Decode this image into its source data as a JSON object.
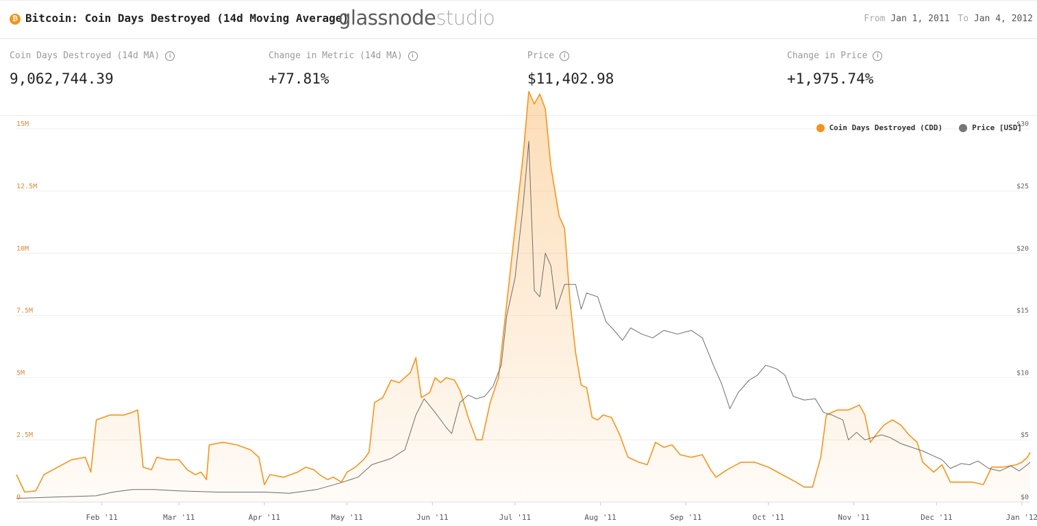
{
  "header": {
    "coin_icon": "bitcoin-icon",
    "title": "Bitcoin: Coin Days Destroyed (14d Moving Average)",
    "brand_main": "glassnode",
    "brand_sub": "studio",
    "from_label": "From",
    "from_value": "Jan 1, 2011",
    "to_label": "To",
    "to_value": "Jan 4, 2012"
  },
  "metrics": [
    {
      "label": "Coin Days Destroyed (14d MA)",
      "value": "9,062,744.39",
      "icon": "info-icon"
    },
    {
      "label": "Change in Metric (14d MA)",
      "value": "+77.81%",
      "icon": "info-icon"
    },
    {
      "label": "Price",
      "value": "$11,402.98",
      "icon": "info-icon"
    },
    {
      "label": "Change in Price",
      "value": "+1,975.74%",
      "icon": "info-icon"
    }
  ],
  "legend": [
    {
      "label": "Coin Days Destroyed (CDD)",
      "color": "#f7931a"
    },
    {
      "label": "Price [USD]",
      "color": "#777777"
    }
  ],
  "chart_data": {
    "type": "area",
    "grid": true,
    "legend_position": "top-right",
    "x_tick_labels": [
      "Feb '11",
      "Mar '11",
      "Apr '11",
      "May '11",
      "Jun '11",
      "Jul '11",
      "Aug '11",
      "Sep '11",
      "Oct '11",
      "Nov '11",
      "Dec '11",
      "Jan '12"
    ],
    "x_tick_dates": [
      "2011-02-01",
      "2011-03-01",
      "2011-04-01",
      "2011-05-01",
      "2011-06-01",
      "2011-07-01",
      "2011-08-01",
      "2011-09-01",
      "2011-10-01",
      "2011-11-01",
      "2011-12-01",
      "2012-01-01"
    ],
    "xlim": [
      "2011-01-01",
      "2012-01-04"
    ],
    "y_left": {
      "ticks": [
        0,
        2500000,
        5000000,
        7500000,
        10000000,
        12500000,
        15000000
      ],
      "tick_labels": [
        "0",
        "2.5M",
        "5M",
        "7.5M",
        "10M",
        "12.5M",
        "15M"
      ],
      "ylim": [
        0,
        15500000
      ]
    },
    "y_right": {
      "ticks": [
        0,
        5,
        10,
        15,
        20,
        25,
        30
      ],
      "tick_labels": [
        "$0",
        "$5",
        "$10",
        "$15",
        "$20",
        "$25",
        "$30"
      ],
      "ylim": [
        0,
        31
      ]
    },
    "series": [
      {
        "name": "Coin Days Destroyed (CDD)",
        "axis": "left",
        "color": "#f7931a",
        "fill": true,
        "points": [
          [
            "2011-01-01",
            1100000
          ],
          [
            "2011-01-04",
            400000
          ],
          [
            "2011-01-08",
            450000
          ],
          [
            "2011-01-11",
            1100000
          ],
          [
            "2011-01-16",
            1400000
          ],
          [
            "2011-01-21",
            1700000
          ],
          [
            "2011-01-26",
            1800000
          ],
          [
            "2011-01-28",
            1200000
          ],
          [
            "2011-01-30",
            3300000
          ],
          [
            "2011-02-04",
            3500000
          ],
          [
            "2011-02-09",
            3500000
          ],
          [
            "2011-02-12",
            3600000
          ],
          [
            "2011-02-14",
            3700000
          ],
          [
            "2011-02-16",
            1400000
          ],
          [
            "2011-02-19",
            1300000
          ],
          [
            "2011-02-21",
            1800000
          ],
          [
            "2011-02-25",
            1700000
          ],
          [
            "2011-03-01",
            1700000
          ],
          [
            "2011-03-04",
            1300000
          ],
          [
            "2011-03-07",
            1100000
          ],
          [
            "2011-03-09",
            1200000
          ],
          [
            "2011-03-11",
            900000
          ],
          [
            "2011-03-12",
            2300000
          ],
          [
            "2011-03-17",
            2400000
          ],
          [
            "2011-03-22",
            2300000
          ],
          [
            "2011-03-27",
            2100000
          ],
          [
            "2011-03-30",
            1800000
          ],
          [
            "2011-04-01",
            700000
          ],
          [
            "2011-04-03",
            1100000
          ],
          [
            "2011-04-08",
            1000000
          ],
          [
            "2011-04-13",
            1200000
          ],
          [
            "2011-04-16",
            1400000
          ],
          [
            "2011-04-19",
            1300000
          ],
          [
            "2011-04-21",
            1100000
          ],
          [
            "2011-04-24",
            900000
          ],
          [
            "2011-04-26",
            1000000
          ],
          [
            "2011-04-29",
            800000
          ],
          [
            "2011-05-01",
            1200000
          ],
          [
            "2011-05-04",
            1400000
          ],
          [
            "2011-05-07",
            1700000
          ],
          [
            "2011-05-09",
            2000000
          ],
          [
            "2011-05-11",
            4000000
          ],
          [
            "2011-05-14",
            4200000
          ],
          [
            "2011-05-17",
            4900000
          ],
          [
            "2011-05-20",
            4800000
          ],
          [
            "2011-05-24",
            5200000
          ],
          [
            "2011-05-26",
            5800000
          ],
          [
            "2011-05-28",
            4200000
          ],
          [
            "2011-05-31",
            4400000
          ],
          [
            "2011-06-02",
            5000000
          ],
          [
            "2011-06-04",
            4800000
          ],
          [
            "2011-06-06",
            5000000
          ],
          [
            "2011-06-09",
            4900000
          ],
          [
            "2011-06-11",
            4500000
          ],
          [
            "2011-06-14",
            3400000
          ],
          [
            "2011-06-17",
            2500000
          ],
          [
            "2011-06-19",
            2500000
          ],
          [
            "2011-06-22",
            4000000
          ],
          [
            "2011-06-25",
            5000000
          ],
          [
            "2011-06-28",
            8000000
          ],
          [
            "2011-07-01",
            11000000
          ],
          [
            "2011-07-04",
            14000000
          ],
          [
            "2011-07-06",
            16500000
          ],
          [
            "2011-07-08",
            16000000
          ],
          [
            "2011-07-10",
            16400000
          ],
          [
            "2011-07-12",
            15800000
          ],
          [
            "2011-07-14",
            13500000
          ],
          [
            "2011-07-17",
            11500000
          ],
          [
            "2011-07-19",
            11000000
          ],
          [
            "2011-07-21",
            8000000
          ],
          [
            "2011-07-23",
            6000000
          ],
          [
            "2011-07-25",
            4700000
          ],
          [
            "2011-07-27",
            4600000
          ],
          [
            "2011-07-29",
            3400000
          ],
          [
            "2011-07-31",
            3300000
          ],
          [
            "2011-08-02",
            3500000
          ],
          [
            "2011-08-05",
            3400000
          ],
          [
            "2011-08-08",
            2700000
          ],
          [
            "2011-08-11",
            1800000
          ],
          [
            "2011-08-15",
            1600000
          ],
          [
            "2011-08-18",
            1500000
          ],
          [
            "2011-08-21",
            2400000
          ],
          [
            "2011-08-24",
            2200000
          ],
          [
            "2011-08-27",
            2300000
          ],
          [
            "2011-08-30",
            1900000
          ],
          [
            "2011-09-03",
            1800000
          ],
          [
            "2011-09-07",
            1900000
          ],
          [
            "2011-09-10",
            1300000
          ],
          [
            "2011-09-12",
            1000000
          ],
          [
            "2011-09-16",
            1300000
          ],
          [
            "2011-09-21",
            1600000
          ],
          [
            "2011-09-26",
            1600000
          ],
          [
            "2011-10-01",
            1400000
          ],
          [
            "2011-10-06",
            1100000
          ],
          [
            "2011-10-11",
            800000
          ],
          [
            "2011-10-14",
            600000
          ],
          [
            "2011-10-17",
            600000
          ],
          [
            "2011-10-20",
            1800000
          ],
          [
            "2011-10-22",
            3500000
          ],
          [
            "2011-10-26",
            3700000
          ],
          [
            "2011-10-30",
            3700000
          ],
          [
            "2011-11-03",
            3900000
          ],
          [
            "2011-11-05",
            3500000
          ],
          [
            "2011-11-07",
            2400000
          ],
          [
            "2011-11-09",
            2700000
          ],
          [
            "2011-11-12",
            3100000
          ],
          [
            "2011-11-15",
            3300000
          ],
          [
            "2011-11-18",
            3100000
          ],
          [
            "2011-11-21",
            2700000
          ],
          [
            "2011-11-24",
            2400000
          ],
          [
            "2011-11-26",
            1600000
          ],
          [
            "2011-11-30",
            1200000
          ],
          [
            "2011-12-03",
            1500000
          ],
          [
            "2011-12-06",
            800000
          ],
          [
            "2011-12-10",
            800000
          ],
          [
            "2011-12-14",
            800000
          ],
          [
            "2011-12-18",
            700000
          ],
          [
            "2011-12-21",
            1400000
          ],
          [
            "2011-12-25",
            1400000
          ],
          [
            "2011-12-30",
            1500000
          ],
          [
            "2012-01-01",
            1600000
          ],
          [
            "2012-01-03",
            1800000
          ],
          [
            "2012-01-04",
            2000000
          ]
        ]
      },
      {
        "name": "Price [USD]",
        "axis": "right",
        "color": "#6b6b6b",
        "fill": false,
        "points": [
          [
            "2011-01-01",
            0.3
          ],
          [
            "2011-01-15",
            0.4
          ],
          [
            "2011-01-30",
            0.5
          ],
          [
            "2011-02-05",
            0.8
          ],
          [
            "2011-02-12",
            1.0
          ],
          [
            "2011-02-20",
            1.0
          ],
          [
            "2011-03-01",
            0.9
          ],
          [
            "2011-03-15",
            0.8
          ],
          [
            "2011-04-01",
            0.8
          ],
          [
            "2011-04-10",
            0.7
          ],
          [
            "2011-04-20",
            1.0
          ],
          [
            "2011-04-28",
            1.5
          ],
          [
            "2011-05-05",
            2.0
          ],
          [
            "2011-05-10",
            3.0
          ],
          [
            "2011-05-17",
            3.5
          ],
          [
            "2011-05-22",
            4.2
          ],
          [
            "2011-05-26",
            7.0
          ],
          [
            "2011-05-29",
            8.3
          ],
          [
            "2011-06-02",
            7.2
          ],
          [
            "2011-06-06",
            6.0
          ],
          [
            "2011-06-08",
            5.5
          ],
          [
            "2011-06-11",
            8.0
          ],
          [
            "2011-06-14",
            8.6
          ],
          [
            "2011-06-17",
            8.3
          ],
          [
            "2011-06-20",
            8.5
          ],
          [
            "2011-06-23",
            9.3
          ],
          [
            "2011-06-26",
            11.0
          ],
          [
            "2011-06-28",
            15.0
          ],
          [
            "2011-07-01",
            18.0
          ],
          [
            "2011-07-04",
            24.0
          ],
          [
            "2011-07-06",
            29.0
          ],
          [
            "2011-07-08",
            17.0
          ],
          [
            "2011-07-10",
            16.5
          ],
          [
            "2011-07-12",
            20.0
          ],
          [
            "2011-07-14",
            19.0
          ],
          [
            "2011-07-16",
            15.5
          ],
          [
            "2011-07-19",
            17.5
          ],
          [
            "2011-07-23",
            17.5
          ],
          [
            "2011-07-25",
            15.5
          ],
          [
            "2011-07-27",
            16.8
          ],
          [
            "2011-07-31",
            16.5
          ],
          [
            "2011-08-03",
            14.5
          ],
          [
            "2011-08-06",
            13.8
          ],
          [
            "2011-08-09",
            13.0
          ],
          [
            "2011-08-12",
            14.0
          ],
          [
            "2011-08-16",
            13.5
          ],
          [
            "2011-08-20",
            13.2
          ],
          [
            "2011-08-24",
            13.8
          ],
          [
            "2011-08-29",
            13.5
          ],
          [
            "2011-09-03",
            13.8
          ],
          [
            "2011-09-07",
            13.2
          ],
          [
            "2011-09-11",
            11.0
          ],
          [
            "2011-09-14",
            9.5
          ],
          [
            "2011-09-17",
            7.5
          ],
          [
            "2011-09-20",
            8.8
          ],
          [
            "2011-09-24",
            9.8
          ],
          [
            "2011-09-27",
            10.2
          ],
          [
            "2011-09-30",
            11.0
          ],
          [
            "2011-10-04",
            10.7
          ],
          [
            "2011-10-07",
            10.2
          ],
          [
            "2011-10-10",
            8.5
          ],
          [
            "2011-10-14",
            8.2
          ],
          [
            "2011-10-18",
            8.3
          ],
          [
            "2011-10-21",
            7.2
          ],
          [
            "2011-10-24",
            7.0
          ],
          [
            "2011-10-28",
            6.6
          ],
          [
            "2011-10-30",
            5.0
          ],
          [
            "2011-11-02",
            5.6
          ],
          [
            "2011-11-05",
            5.0
          ],
          [
            "2011-11-08",
            5.2
          ],
          [
            "2011-11-11",
            5.4
          ],
          [
            "2011-11-14",
            5.2
          ],
          [
            "2011-11-18",
            4.7
          ],
          [
            "2011-11-22",
            4.4
          ],
          [
            "2011-11-26",
            4.1
          ],
          [
            "2011-11-30",
            3.7
          ],
          [
            "2011-12-03",
            3.4
          ],
          [
            "2011-12-06",
            2.7
          ],
          [
            "2011-12-10",
            3.1
          ],
          [
            "2011-12-13",
            3.0
          ],
          [
            "2011-12-16",
            3.3
          ],
          [
            "2011-12-20",
            2.7
          ],
          [
            "2011-12-24",
            2.5
          ],
          [
            "2011-12-28",
            2.9
          ],
          [
            "2011-12-31",
            2.5
          ],
          [
            "2012-01-03",
            3.0
          ],
          [
            "2012-01-04",
            3.2
          ]
        ]
      }
    ]
  }
}
